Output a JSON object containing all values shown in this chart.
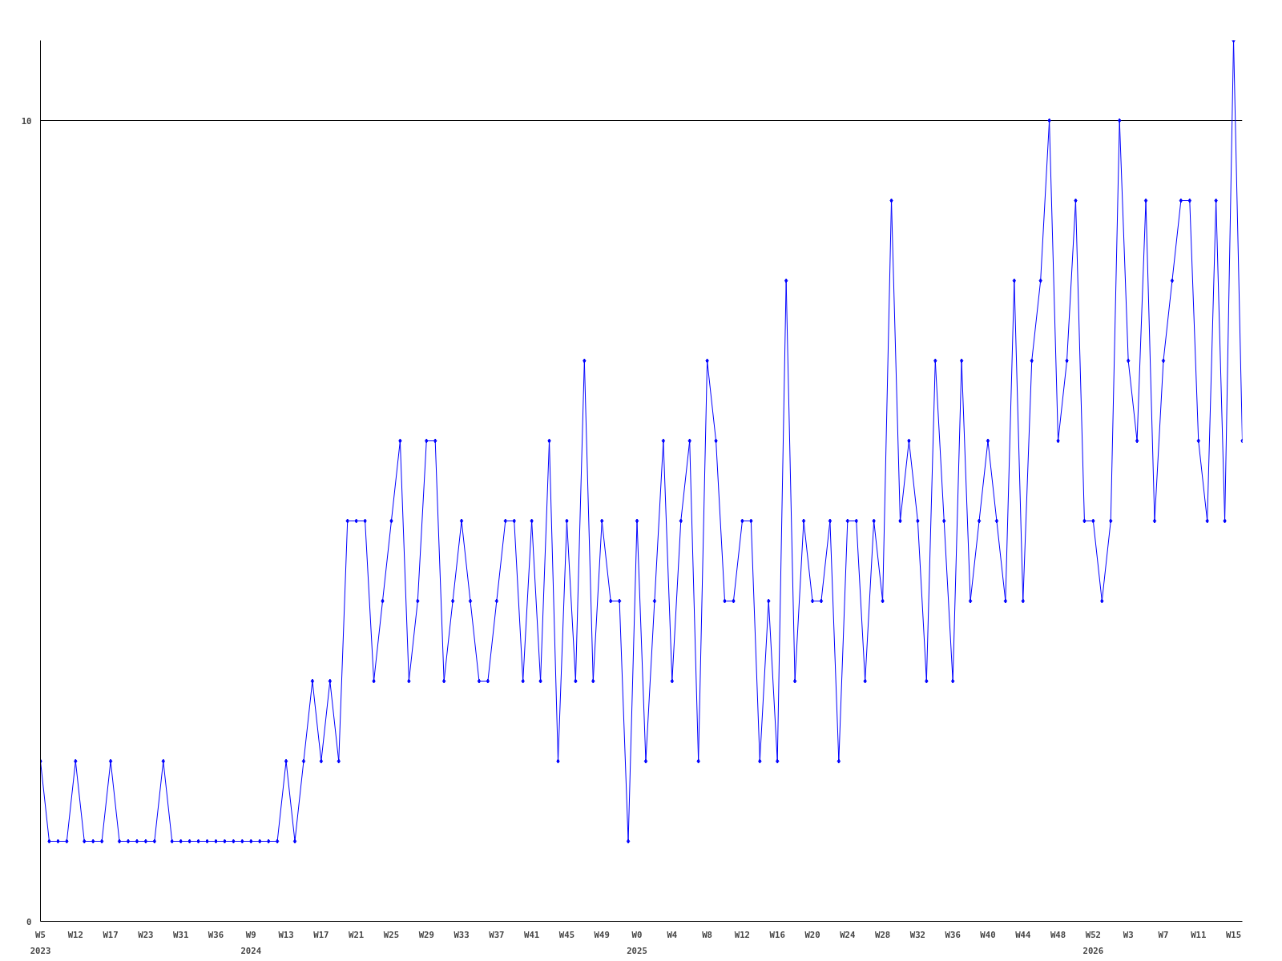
{
  "chart_data": {
    "type": "line",
    "categories": [
      "W5\n2023",
      null,
      null,
      null,
      "W12",
      null,
      null,
      null,
      "W17",
      null,
      null,
      null,
      "W23",
      null,
      null,
      null,
      "W31",
      null,
      null,
      null,
      "W36",
      null,
      null,
      null,
      "W9\n2024",
      null,
      null,
      null,
      "W13",
      null,
      null,
      null,
      "W17",
      null,
      null,
      null,
      "W21",
      null,
      null,
      null,
      "W25",
      null,
      null,
      null,
      "W29",
      null,
      null,
      null,
      "W33",
      null,
      null,
      null,
      "W37",
      null,
      null,
      null,
      "W41",
      null,
      null,
      null,
      "W45",
      null,
      null,
      null,
      "W49",
      null,
      null,
      null,
      "W0\n2025",
      null,
      null,
      null,
      "W4",
      null,
      null,
      null,
      "W8",
      null,
      null,
      null,
      "W12",
      null,
      null,
      null,
      "W16",
      null,
      null,
      null,
      "W20",
      null,
      null,
      null,
      "W24",
      null,
      null,
      null,
      "W28",
      null,
      null,
      null,
      "W32",
      null,
      null,
      null,
      "W36",
      null,
      null,
      null,
      "W40",
      null,
      null,
      null,
      "W44",
      null,
      null,
      null,
      "W48",
      null,
      null,
      null,
      "W52\n2026",
      null,
      null,
      null,
      "W3",
      null,
      null,
      null,
      "W7",
      null,
      null,
      null,
      "W11",
      null,
      null,
      null,
      "W15",
      null
    ],
    "series": [
      {
        "color": "#0000ff",
        "values": [
          2,
          1,
          1,
          1,
          2,
          1,
          1,
          1,
          2,
          1,
          1,
          1,
          1,
          1,
          2,
          1,
          1,
          1,
          1,
          1,
          1,
          1,
          1,
          1,
          1,
          1,
          1,
          1,
          2,
          1,
          2,
          3,
          2,
          3,
          2,
          5,
          5,
          5,
          3,
          4,
          5,
          6,
          3,
          4,
          6,
          6,
          3,
          4,
          5,
          4,
          3,
          3,
          4,
          5,
          5,
          3,
          5,
          3,
          6,
          2,
          5,
          3,
          7,
          3,
          5,
          4,
          4,
          1,
          5,
          2,
          4,
          6,
          3,
          5,
          6,
          2,
          7,
          6,
          4,
          4,
          5,
          5,
          2,
          4,
          2,
          8,
          3,
          5,
          4,
          4,
          5,
          2,
          5,
          5,
          3,
          5,
          4,
          9,
          5,
          6,
          5,
          3,
          7,
          5,
          3,
          7,
          4,
          5,
          6,
          5,
          4,
          8,
          4,
          7,
          8,
          10,
          6,
          7,
          9,
          5,
          5,
          4,
          5,
          10,
          7,
          6,
          9,
          5,
          7,
          8,
          9,
          9,
          6,
          5,
          9,
          5,
          11,
          6
        ]
      }
    ],
    "ylim": [
      0,
      11
    ],
    "yticks": [
      0,
      10
    ],
    "grid": "y",
    "marker": "diamond",
    "line_style": "solid"
  }
}
